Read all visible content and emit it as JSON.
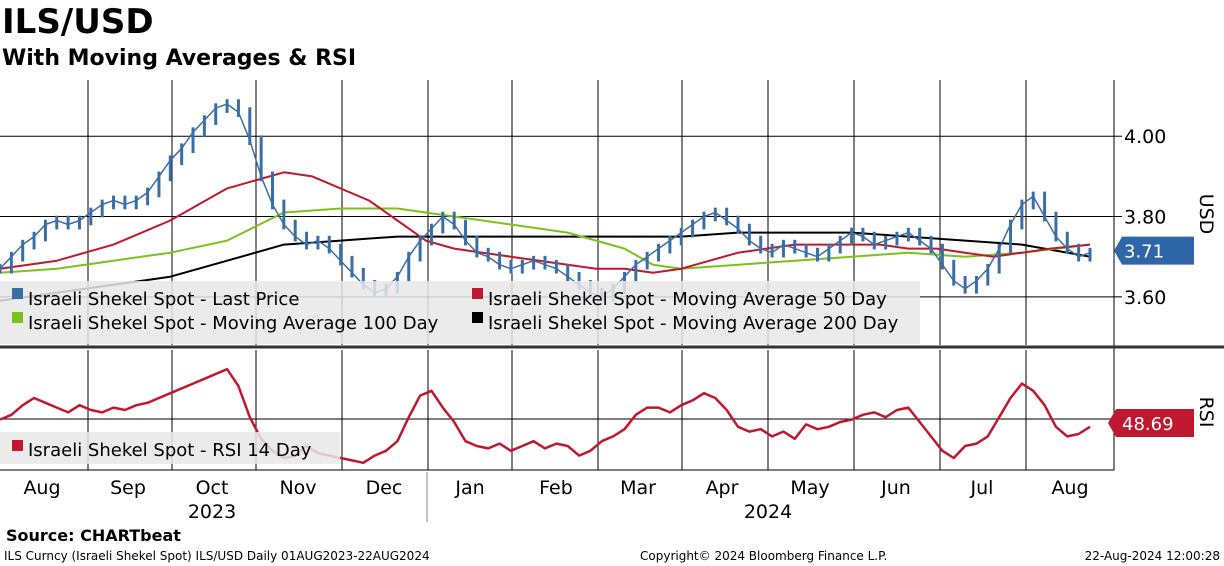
{
  "header": {
    "title": "ILS/USD",
    "subtitle": "With Moving Averages & RSI"
  },
  "source": "Source: CHARTbeat",
  "footer": {
    "left": "ILS Curncy (Israeli Shekel Spot) ILS/USD  Daily 01AUG2023-22AUG2024",
    "middle": "Copyright© 2024 Bloomberg Finance L.P.",
    "right": "22-Aug-2024 12:00:28"
  },
  "colors": {
    "price": "#3b6ea5",
    "ma50": "#c0182e",
    "ma100": "#7cc21d",
    "ma200": "#000000",
    "rsi": "#c0182e",
    "grid": "#000000"
  },
  "chart_data": [
    {
      "type": "line",
      "title": "ILS/USD",
      "ylabel": "USD",
      "ylim": [
        3.48,
        4.14
      ],
      "yticks": [
        3.6,
        3.8,
        4.0
      ],
      "ytick_labels": [
        "3.60",
        "3.80",
        "4.00"
      ],
      "last_value_label": "3.71",
      "x_months": [
        "Aug",
        "Sep",
        "Oct",
        "Nov",
        "Dec",
        "Jan",
        "Feb",
        "Mar",
        "Apr",
        "May",
        "Jun",
        "Jul",
        "Aug"
      ],
      "x_years": [
        "2023",
        "2024"
      ],
      "legend": [
        "Israeli Shekel Spot - Last Price",
        "Israeli Shekel Spot - Moving Average 50 Day",
        "Israeli Shekel Spot - Moving Average 100 Day",
        "Israeli Shekel Spot - Moving Average 200 Day"
      ],
      "series": [
        {
          "name": "Israeli Shekel Spot - Last Price",
          "x": [
            0,
            4,
            8,
            12,
            16,
            20,
            24,
            28,
            32,
            36,
            40,
            44,
            48,
            52,
            56,
            60,
            64,
            68,
            72,
            76,
            80,
            84,
            88,
            92,
            96,
            100,
            104,
            108,
            112,
            116,
            120,
            124,
            128,
            132,
            136,
            140,
            144,
            148,
            152,
            156,
            160,
            164,
            168,
            172,
            176,
            180,
            184,
            188,
            192,
            196,
            200,
            204,
            208,
            212,
            216,
            220,
            224,
            228,
            232,
            236,
            240,
            244,
            248,
            252,
            256,
            260,
            264,
            268,
            272,
            276,
            280,
            284,
            288,
            292,
            296,
            300,
            304,
            308,
            312,
            316,
            320,
            324,
            328,
            332,
            336,
            340,
            344,
            348,
            352,
            356,
            360,
            364,
            368,
            372,
            376,
            380,
            384
          ],
          "values": [
            3.67,
            3.7,
            3.73,
            3.75,
            3.78,
            3.79,
            3.78,
            3.79,
            3.81,
            3.83,
            3.84,
            3.83,
            3.84,
            3.86,
            3.9,
            3.94,
            3.97,
            4.01,
            4.04,
            4.07,
            4.08,
            4.06,
            3.99,
            3.9,
            3.83,
            3.78,
            3.75,
            3.73,
            3.74,
            3.72,
            3.69,
            3.66,
            3.63,
            3.61,
            3.62,
            3.65,
            3.7,
            3.74,
            3.77,
            3.8,
            3.78,
            3.74,
            3.71,
            3.7,
            3.68,
            3.67,
            3.68,
            3.69,
            3.68,
            3.67,
            3.65,
            3.63,
            3.61,
            3.6,
            3.62,
            3.65,
            3.68,
            3.7,
            3.72,
            3.74,
            3.76,
            3.78,
            3.8,
            3.81,
            3.79,
            3.77,
            3.74,
            3.72,
            3.71,
            3.73,
            3.72,
            3.71,
            3.7,
            3.72,
            3.74,
            3.76,
            3.75,
            3.73,
            3.74,
            3.75,
            3.76,
            3.74,
            3.72,
            3.68,
            3.64,
            3.62,
            3.64,
            3.67,
            3.72,
            3.78,
            3.83,
            3.85,
            3.8,
            3.75,
            3.72,
            3.7,
            3.71
          ]
        },
        {
          "name": "Israeli Shekel Spot - Moving Average 50 Day",
          "x": [
            0,
            20,
            40,
            60,
            80,
            100,
            110,
            120,
            130,
            140,
            150,
            160,
            170,
            180,
            190,
            200,
            210,
            220,
            230,
            240,
            250,
            260,
            270,
            280,
            290,
            300,
            310,
            320,
            330,
            340,
            350,
            360,
            370,
            384
          ],
          "values": [
            3.67,
            3.69,
            3.73,
            3.79,
            3.87,
            3.91,
            3.9,
            3.87,
            3.84,
            3.79,
            3.74,
            3.72,
            3.71,
            3.7,
            3.69,
            3.68,
            3.67,
            3.67,
            3.66,
            3.67,
            3.69,
            3.71,
            3.72,
            3.73,
            3.73,
            3.73,
            3.73,
            3.72,
            3.72,
            3.71,
            3.7,
            3.71,
            3.72,
            3.73
          ]
        },
        {
          "name": "Israeli Shekel Spot - Moving Average 100 Day",
          "x": [
            0,
            20,
            40,
            60,
            80,
            100,
            120,
            140,
            160,
            180,
            200,
            220,
            230,
            240,
            260,
            280,
            300,
            320,
            340,
            360,
            384
          ],
          "values": [
            3.66,
            3.67,
            3.69,
            3.71,
            3.74,
            3.81,
            3.82,
            3.82,
            3.8,
            3.78,
            3.76,
            3.72,
            3.68,
            3.67,
            3.68,
            3.69,
            3.7,
            3.71,
            3.7,
            3.71,
            3.73
          ]
        },
        {
          "name": "Israeli Shekel Spot - Moving Average 200 Day",
          "x": [
            0,
            20,
            40,
            60,
            80,
            100,
            120,
            140,
            160,
            180,
            200,
            220,
            240,
            260,
            280,
            300,
            320,
            340,
            360,
            384
          ],
          "values": [
            3.59,
            3.61,
            3.63,
            3.65,
            3.69,
            3.73,
            3.74,
            3.75,
            3.75,
            3.75,
            3.75,
            3.75,
            3.75,
            3.76,
            3.76,
            3.76,
            3.75,
            3.74,
            3.73,
            3.7
          ]
        }
      ]
    },
    {
      "type": "line",
      "title": "RSI",
      "ylabel": "RSI",
      "ylim": [
        30,
        80
      ],
      "last_value_label": "48.69",
      "legend": [
        "Israeli Shekel Spot - RSI 14 Day"
      ],
      "series": [
        {
          "name": "Israeli Shekel Spot - RSI 14 Day",
          "x": [
            0,
            4,
            8,
            12,
            16,
            20,
            24,
            28,
            32,
            36,
            40,
            44,
            48,
            52,
            56,
            60,
            64,
            68,
            72,
            76,
            80,
            84,
            88,
            92,
            96,
            100,
            104,
            108,
            112,
            116,
            120,
            124,
            128,
            132,
            136,
            140,
            144,
            148,
            152,
            156,
            160,
            164,
            168,
            172,
            176,
            180,
            184,
            188,
            192,
            196,
            200,
            204,
            208,
            212,
            216,
            220,
            224,
            228,
            232,
            236,
            240,
            244,
            248,
            252,
            256,
            260,
            264,
            268,
            272,
            276,
            280,
            284,
            288,
            292,
            296,
            300,
            304,
            308,
            312,
            316,
            320,
            324,
            328,
            332,
            336,
            340,
            344,
            348,
            352,
            356,
            360,
            364,
            368,
            372,
            376,
            380,
            384
          ],
          "values": [
            51,
            53,
            57,
            60,
            58,
            56,
            54,
            57,
            55,
            54,
            56,
            55,
            57,
            58,
            60,
            62,
            64,
            66,
            68,
            70,
            72,
            65,
            52,
            43,
            38,
            35,
            36,
            40,
            37,
            36,
            35,
            34,
            33,
            36,
            38,
            42,
            52,
            61,
            63,
            56,
            50,
            42,
            40,
            39,
            41,
            38,
            40,
            42,
            39,
            41,
            40,
            36,
            38,
            42,
            44,
            47,
            53,
            56,
            56,
            54,
            57,
            59,
            62,
            60,
            55,
            48,
            46,
            47,
            44,
            46,
            43,
            49,
            47,
            48,
            50,
            51,
            53,
            54,
            52,
            55,
            56,
            50,
            44,
            38,
            35,
            40,
            41,
            44,
            52,
            60,
            66,
            63,
            57,
            48,
            44,
            45,
            48
          ]
        }
      ]
    }
  ]
}
